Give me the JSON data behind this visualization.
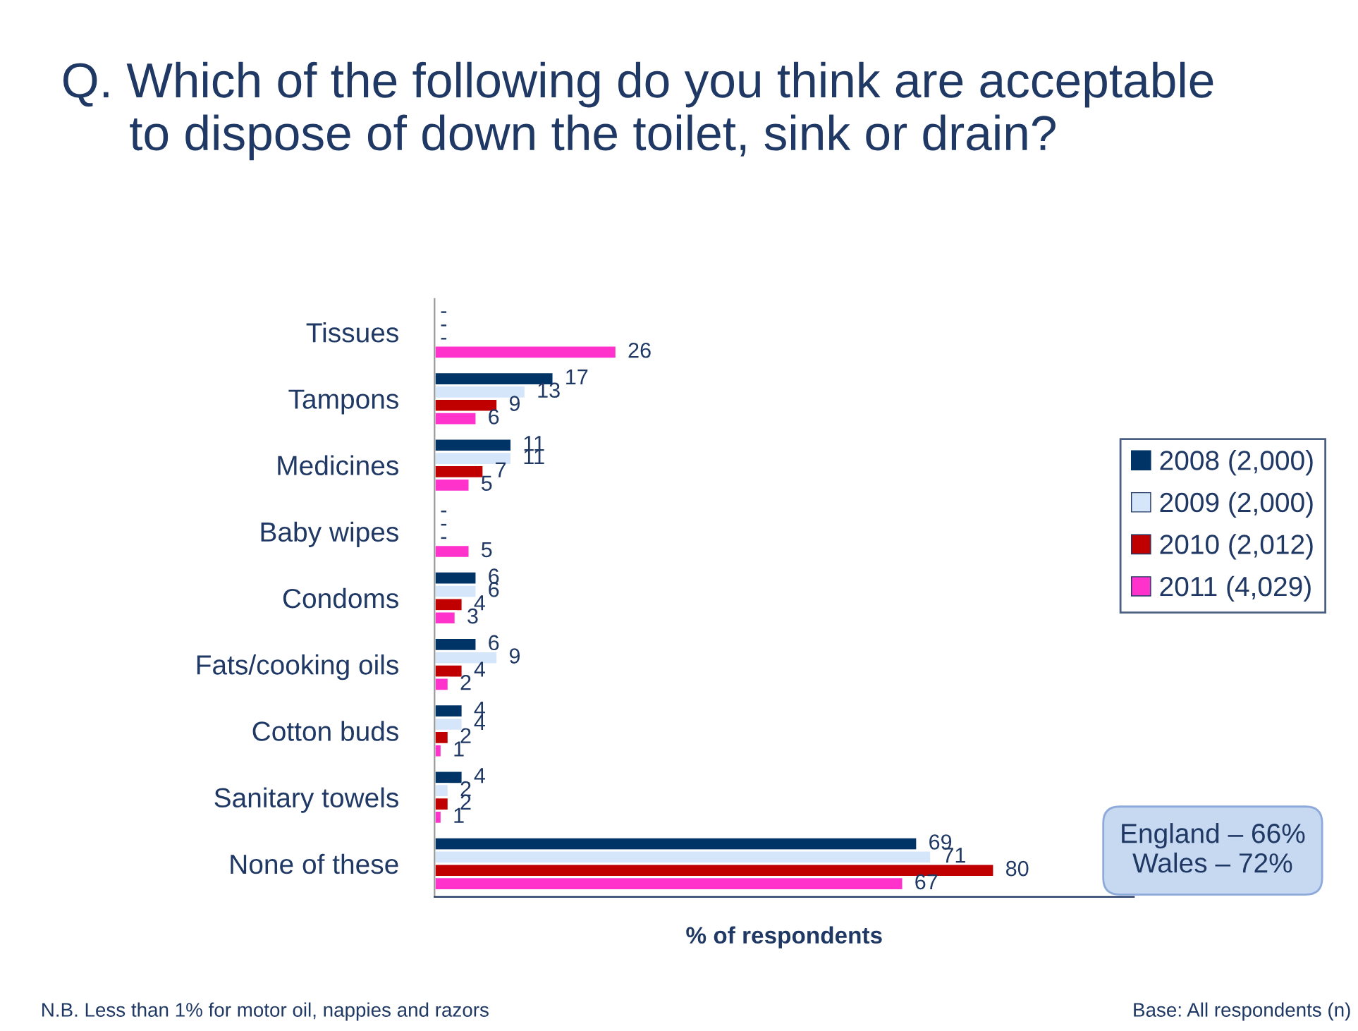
{
  "chart_data": {
    "type": "bar",
    "orientation": "horizontal",
    "title": "Q. Which of the following do you think are acceptable\n     to dispose of down the toilet, sink or drain?",
    "xlabel": "% of respondents",
    "categories": [
      "Tissues",
      "Tampons",
      "Medicines",
      "Baby wipes",
      "Condoms",
      "Fats/cooking oils",
      "Cotton buds",
      "Sanitary towels",
      "None of these"
    ],
    "series": [
      {
        "name": "2008 (2,000)",
        "color": "#003366",
        "values": [
          null,
          17,
          11,
          null,
          6,
          6,
          4,
          4,
          69
        ],
        "value_labels": [
          "-",
          "17",
          "11",
          "-",
          "6",
          "6",
          "4",
          "4",
          "69"
        ]
      },
      {
        "name": "2009 (2,000)",
        "color": "#d6e6fa",
        "values": [
          null,
          13,
          11,
          null,
          6,
          9,
          4,
          2,
          71
        ],
        "value_labels": [
          "-",
          "13",
          "11",
          "-",
          "6",
          "9",
          "4",
          "2",
          "71"
        ]
      },
      {
        "name": "2010 (2,012)",
        "color": "#c00000",
        "values": [
          null,
          9,
          7,
          null,
          4,
          4,
          2,
          2,
          80
        ],
        "value_labels": [
          "-",
          "9",
          "7",
          "-",
          "4",
          "4",
          "2",
          "2",
          "80"
        ]
      },
      {
        "name": "2011 (4,029)",
        "color": "#ff33cc",
        "values": [
          26,
          6,
          5,
          5,
          3,
          2,
          1,
          1,
          67
        ],
        "value_labels": [
          "26",
          "6",
          "5",
          "5",
          "3",
          "2",
          "1",
          "1",
          "67"
        ]
      }
    ],
    "legend": "right",
    "annotations": [
      "England – 66%\nWales – 72%",
      "N.B. Less than 1% for motor oil, nappies and razors",
      "Base: All respondents (n)"
    ]
  }
}
